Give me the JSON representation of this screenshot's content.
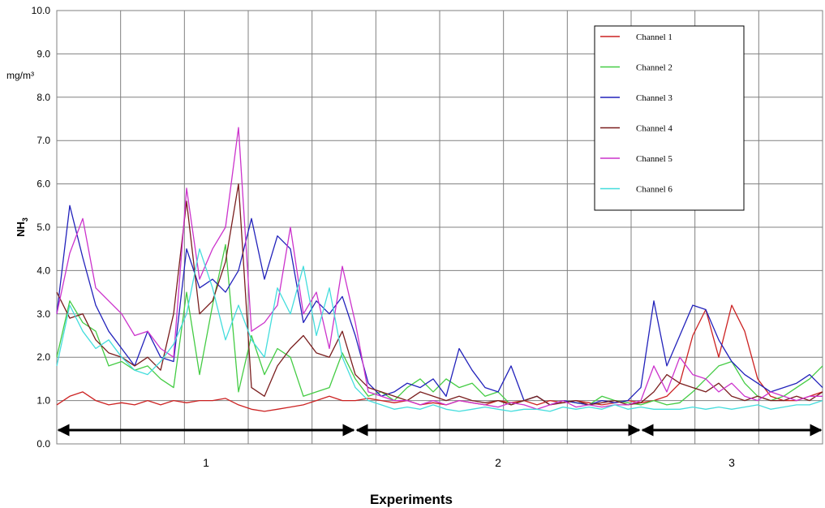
{
  "chart_data": {
    "type": "line",
    "title": "",
    "xlabel": "Experiments",
    "ylabel": "NH3",
    "ylabel_main": "NH",
    "ylabel_sub": "3",
    "unit_label": "mg/m³",
    "ylim": [
      0,
      10
    ],
    "y_ticks": [
      "0.0",
      "1.0",
      "2.0",
      "3.0",
      "4.0",
      "5.0",
      "6.0",
      "7.0",
      "8.0",
      "9.0",
      "10.0"
    ],
    "grid": true,
    "legend_position": "top-right",
    "x_points": 60,
    "experiments": [
      {
        "label": "1",
        "start_index": 0,
        "end_index": 23
      },
      {
        "label": "2",
        "start_index": 23,
        "end_index": 45
      },
      {
        "label": "3",
        "start_index": 45,
        "end_index": 59
      }
    ],
    "series": [
      {
        "name": "Channel 1",
        "color": "#cc2222",
        "values": [
          0.9,
          1.1,
          1.2,
          1.0,
          0.9,
          0.95,
          0.9,
          1.0,
          0.9,
          1.0,
          0.95,
          1.0,
          1.0,
          1.05,
          0.9,
          0.8,
          0.75,
          0.8,
          0.85,
          0.9,
          1.0,
          1.1,
          1.0,
          1.0,
          1.05,
          1.0,
          0.95,
          1.0,
          0.9,
          0.95,
          0.9,
          1.0,
          0.95,
          0.9,
          1.0,
          0.95,
          1.0,
          0.9,
          1.0,
          0.95,
          1.0,
          0.95,
          0.9,
          0.95,
          1.0,
          0.95,
          1.0,
          1.1,
          1.4,
          2.5,
          3.1,
          2.0,
          3.2,
          2.6,
          1.5,
          1.1,
          1.0,
          1.0,
          1.1,
          1.2
        ]
      },
      {
        "name": "Channel 2",
        "color": "#44cc44",
        "values": [
          2.0,
          3.3,
          2.8,
          2.6,
          1.8,
          1.9,
          1.7,
          1.8,
          1.5,
          1.3,
          3.5,
          1.6,
          3.2,
          4.6,
          1.2,
          2.5,
          1.6,
          2.2,
          2.0,
          1.1,
          1.2,
          1.3,
          2.1,
          1.5,
          1.1,
          1.2,
          1.0,
          1.3,
          1.5,
          1.2,
          1.5,
          1.3,
          1.4,
          1.1,
          1.2,
          0.9,
          1.0,
          1.1,
          0.9,
          1.0,
          0.95,
          0.9,
          1.1,
          1.0,
          0.95,
          0.9,
          1.0,
          0.9,
          0.95,
          1.2,
          1.5,
          1.8,
          1.9,
          1.4,
          1.1,
          1.0,
          1.1,
          1.3,
          1.5,
          1.8
        ]
      },
      {
        "name": "Channel 3",
        "color": "#2222bb",
        "values": [
          3.0,
          5.5,
          4.3,
          3.2,
          2.6,
          2.2,
          1.8,
          2.6,
          2.0,
          1.9,
          4.5,
          3.6,
          3.8,
          3.5,
          4.0,
          5.2,
          3.8,
          4.8,
          4.5,
          2.8,
          3.3,
          3.0,
          3.4,
          2.5,
          1.4,
          1.1,
          1.2,
          1.4,
          1.3,
          1.5,
          1.1,
          2.2,
          1.7,
          1.3,
          1.2,
          1.8,
          1.0,
          1.1,
          0.9,
          1.0,
          0.95,
          0.9,
          1.0,
          0.95,
          1.0,
          1.3,
          3.3,
          1.8,
          2.5,
          3.2,
          3.1,
          2.4,
          1.9,
          1.6,
          1.4,
          1.2,
          1.3,
          1.4,
          1.6,
          1.3
        ]
      },
      {
        "name": "Channel 4",
        "color": "#7a1e1e",
        "values": [
          3.5,
          2.9,
          3.0,
          2.4,
          2.1,
          2.0,
          1.8,
          2.0,
          1.7,
          3.0,
          5.6,
          3.0,
          3.3,
          4.2,
          6.0,
          1.3,
          1.1,
          1.8,
          2.2,
          2.5,
          2.1,
          2.0,
          2.6,
          1.6,
          1.3,
          1.2,
          1.1,
          1.0,
          1.2,
          1.1,
          1.0,
          1.1,
          1.0,
          0.95,
          1.0,
          0.9,
          1.0,
          1.1,
          0.9,
          0.95,
          1.0,
          0.9,
          0.95,
          1.0,
          0.9,
          0.95,
          1.2,
          1.6,
          1.4,
          1.3,
          1.2,
          1.4,
          1.1,
          1.0,
          1.1,
          1.0,
          1.0,
          1.1,
          1.0,
          1.2
        ]
      },
      {
        "name": "Channel 5",
        "color": "#cc33cc",
        "values": [
          3.0,
          4.4,
          5.2,
          3.6,
          3.3,
          3.0,
          2.5,
          2.6,
          2.2,
          2.0,
          5.9,
          3.8,
          4.5,
          5.0,
          7.3,
          2.6,
          2.8,
          3.2,
          5.0,
          3.0,
          3.5,
          2.2,
          4.1,
          2.8,
          1.2,
          1.1,
          1.0,
          1.0,
          0.9,
          1.0,
          0.9,
          1.0,
          0.95,
          0.9,
          0.85,
          0.95,
          0.9,
          0.8,
          0.9,
          1.0,
          0.85,
          0.9,
          0.85,
          0.9,
          0.9,
          1.0,
          1.8,
          1.2,
          2.0,
          1.6,
          1.5,
          1.2,
          1.4,
          1.1,
          1.0,
          1.2,
          1.1,
          1.0,
          1.1,
          1.1
        ]
      },
      {
        "name": "Channel 6",
        "color": "#44dddd",
        "values": [
          1.8,
          3.2,
          2.6,
          2.2,
          2.4,
          2.0,
          1.7,
          1.6,
          1.9,
          2.3,
          3.0,
          4.5,
          3.6,
          2.4,
          3.2,
          2.4,
          2.0,
          3.6,
          3.0,
          4.1,
          2.5,
          3.6,
          2.0,
          1.3,
          1.0,
          0.9,
          0.8,
          0.85,
          0.8,
          0.9,
          0.8,
          0.75,
          0.8,
          0.85,
          0.8,
          0.75,
          0.8,
          0.8,
          0.75,
          0.85,
          0.8,
          0.85,
          0.8,
          0.9,
          0.8,
          0.85,
          0.8,
          0.8,
          0.8,
          0.85,
          0.8,
          0.85,
          0.8,
          0.85,
          0.9,
          0.8,
          0.85,
          0.9,
          0.9,
          1.0
        ]
      }
    ]
  }
}
